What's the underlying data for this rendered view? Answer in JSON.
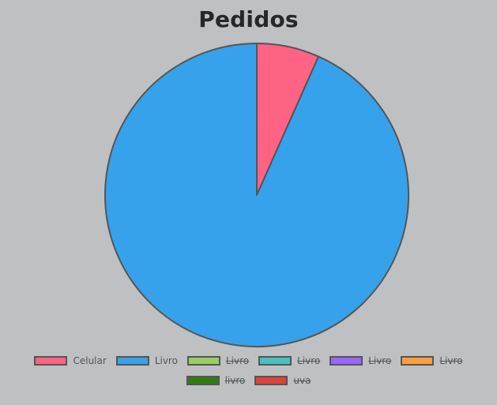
{
  "chart_data": {
    "type": "pie",
    "title": "Pedidos",
    "slices": [
      {
        "label": "Celular",
        "value": 1,
        "color": "#ff6384",
        "hidden": false
      },
      {
        "label": "Livro",
        "value": 14,
        "color": "#36a2eb",
        "hidden": false
      },
      {
        "label": "Livro",
        "value": 0,
        "color": "#9ccc65",
        "hidden": true
      },
      {
        "label": "Livro",
        "value": 0,
        "color": "#4bc0c0",
        "hidden": true
      },
      {
        "label": "Livro",
        "value": 0,
        "color": "#9966ff",
        "hidden": true
      },
      {
        "label": "Livro",
        "value": 0,
        "color": "#ff9f40",
        "hidden": true
      },
      {
        "label": "livro",
        "value": 0,
        "color": "#2e7d0e",
        "hidden": true
      },
      {
        "label": "uva",
        "value": 0,
        "color": "#db4437",
        "hidden": true
      }
    ],
    "legend_position": "bottom",
    "slice_border_color": "#555555"
  }
}
